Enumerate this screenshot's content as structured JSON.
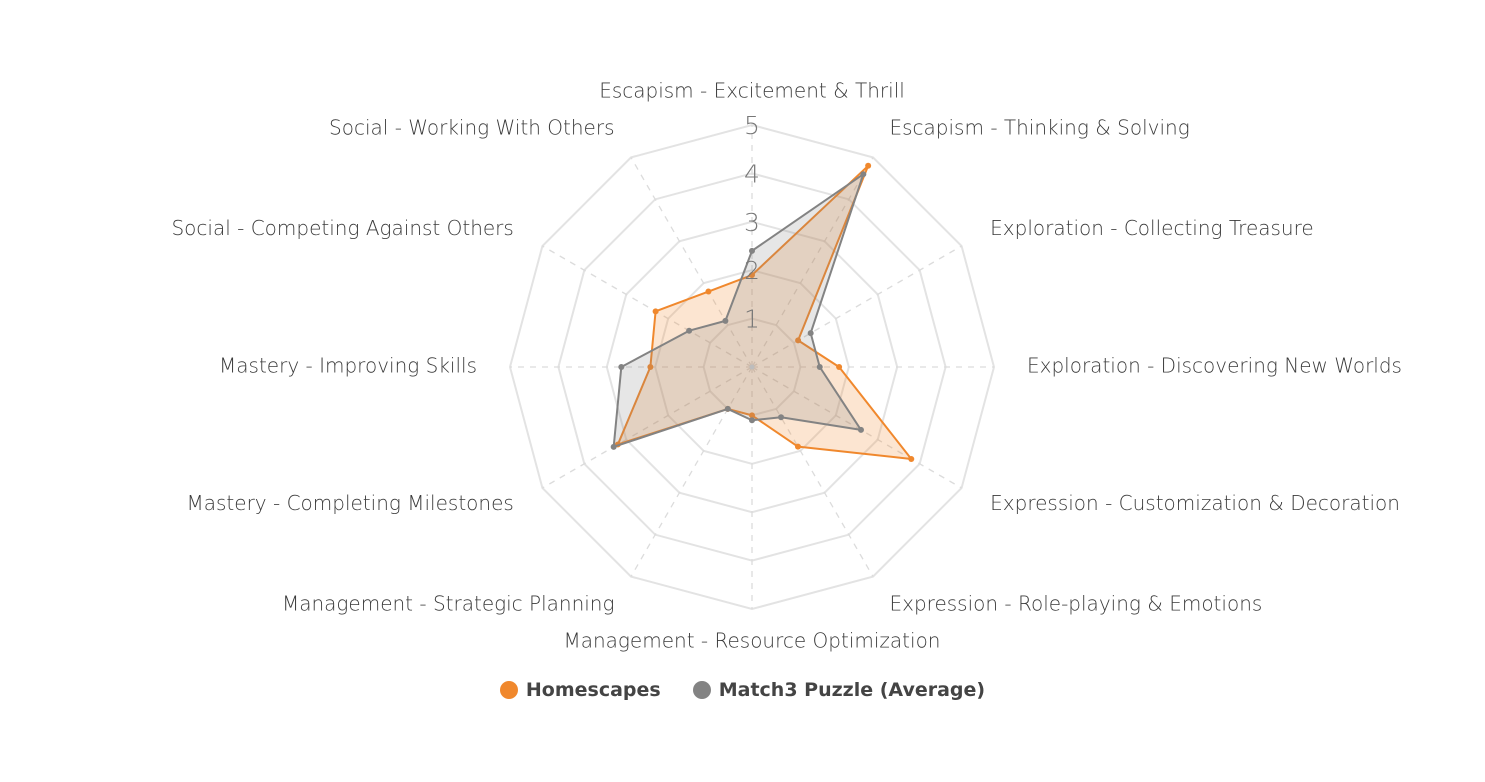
{
  "chart_data": {
    "type": "radar",
    "axes": [
      "Escapism - Excitement & Thrill",
      "Escapism - Thinking & Solving",
      "Exploration - Collecting Treasure",
      "Exploration - Discovering New Worlds",
      "Expression - Customization & Decoration",
      "Expression - Role-playing & Emotions",
      "Management - Resource Optimization",
      "Management - Strategic Planning",
      "Mastery - Completing Milestones",
      "Mastery - Improving Skills",
      "Social - Competing Against Others",
      "Social - Working With Others"
    ],
    "ticks": [
      "1",
      "2",
      "3",
      "4",
      "5"
    ],
    "rmax": 5,
    "grid": true,
    "legend_position": "bottom",
    "series": [
      {
        "name": "Homescapes",
        "color": "#f0882d",
        "values": [
          1.9,
          4.8,
          1.1,
          1.8,
          3.8,
          1.9,
          1.0,
          1.0,
          3.2,
          2.1,
          2.3,
          1.8
        ]
      },
      {
        "name": "Match3 Puzzle (Average)",
        "color": "#838383",
        "values": [
          2.4,
          4.6,
          1.4,
          1.4,
          2.6,
          1.2,
          1.1,
          1.0,
          3.3,
          2.7,
          1.5,
          1.1
        ]
      }
    ]
  }
}
